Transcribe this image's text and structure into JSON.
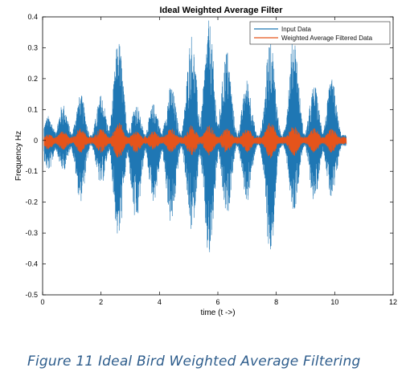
{
  "chart_data": {
    "type": "line",
    "title": "Ideal Weighted Average Filter",
    "xlabel": "time (t ->)",
    "ylabel": "Frequency Hz",
    "xlim": [
      0,
      12
    ],
    "ylim": [
      -0.5,
      0.4
    ],
    "xticks": [
      "0",
      "2",
      "4",
      "6",
      "8",
      "10",
      "12"
    ],
    "yticks": [
      "-0.5",
      "-0.4",
      "-0.3",
      "-0.2",
      "-0.1",
      "0",
      "0.1",
      "0.2",
      "0.3",
      "0.4"
    ],
    "grid": false,
    "legend_position": "top-right",
    "series": [
      {
        "name": "Input Data",
        "color": "#1f77b4",
        "envelope_peaks": [
          {
            "t": 0.2,
            "max": 0.08,
            "min": -0.1
          },
          {
            "t": 0.7,
            "max": 0.12,
            "min": -0.1
          },
          {
            "t": 1.3,
            "max": 0.15,
            "min": -0.2
          },
          {
            "t": 2.0,
            "max": 0.15,
            "min": -0.15
          },
          {
            "t": 2.6,
            "max": 0.33,
            "min": -0.33
          },
          {
            "t": 3.2,
            "max": 0.12,
            "min": -0.28
          },
          {
            "t": 3.8,
            "max": 0.12,
            "min": -0.2
          },
          {
            "t": 4.4,
            "max": 0.18,
            "min": -0.28
          },
          {
            "t": 5.1,
            "max": 0.35,
            "min": -0.3
          },
          {
            "t": 5.7,
            "max": 0.39,
            "min": -0.4
          },
          {
            "t": 6.3,
            "max": 0.3,
            "min": -0.25
          },
          {
            "t": 7.0,
            "max": 0.2,
            "min": -0.2
          },
          {
            "t": 7.8,
            "max": 0.34,
            "min": -0.38
          },
          {
            "t": 8.6,
            "max": 0.35,
            "min": -0.23
          },
          {
            "t": 9.3,
            "max": 0.18,
            "min": -0.2
          },
          {
            "t": 9.9,
            "max": 0.2,
            "min": -0.2
          }
        ],
        "t_end": 10.4
      },
      {
        "name": "Weighted Average Filtered Data",
        "color": "#e5541b",
        "envelope_peaks": [
          {
            "t": 0.2,
            "max": 0.02,
            "min": -0.03
          },
          {
            "t": 0.7,
            "max": 0.03,
            "min": -0.03
          },
          {
            "t": 1.3,
            "max": 0.04,
            "min": -0.04
          },
          {
            "t": 2.0,
            "max": 0.04,
            "min": -0.04
          },
          {
            "t": 2.6,
            "max": 0.06,
            "min": -0.06
          },
          {
            "t": 3.2,
            "max": 0.03,
            "min": -0.04
          },
          {
            "t": 3.8,
            "max": 0.03,
            "min": -0.03
          },
          {
            "t": 4.4,
            "max": 0.04,
            "min": -0.04
          },
          {
            "t": 5.1,
            "max": 0.05,
            "min": -0.05
          },
          {
            "t": 5.7,
            "max": 0.05,
            "min": -0.05
          },
          {
            "t": 6.3,
            "max": 0.04,
            "min": -0.04
          },
          {
            "t": 7.0,
            "max": 0.04,
            "min": -0.04
          },
          {
            "t": 7.8,
            "max": 0.06,
            "min": -0.06
          },
          {
            "t": 8.6,
            "max": 0.05,
            "min": -0.05
          },
          {
            "t": 9.3,
            "max": 0.04,
            "min": -0.04
          },
          {
            "t": 9.9,
            "max": 0.04,
            "min": -0.04
          }
        ],
        "t_end": 10.4
      }
    ]
  },
  "caption": "Figure 11 Ideal Bird Weighted Average Filtering"
}
